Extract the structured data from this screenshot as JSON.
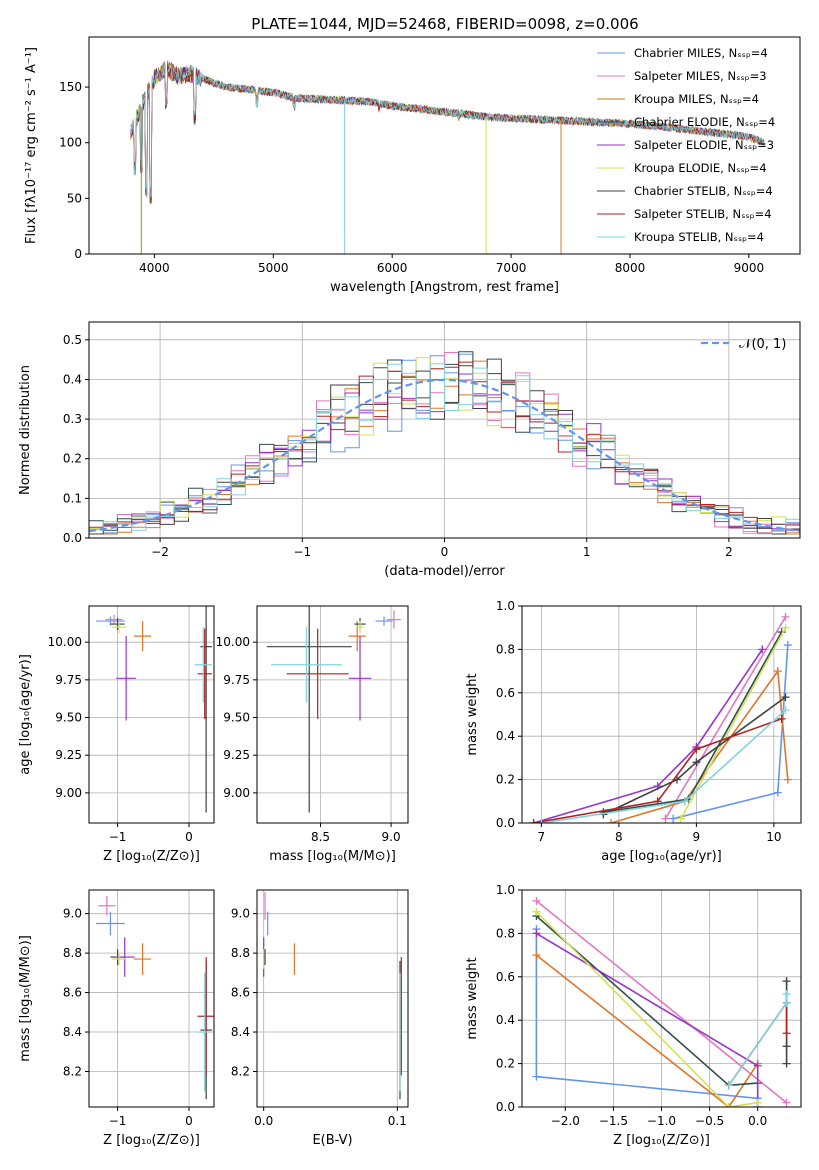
{
  "figure": {
    "title": "PLATE=1044, MJD=52468, FIBERID=0098, z=0.006"
  },
  "chart_data": [
    {
      "id": "spectrum",
      "type": "line",
      "xlabel": "wavelength [Angstrom, rest frame]",
      "ylabel": "Flux [fλ10⁻¹⁷ erg cm⁻² s⁻¹ A⁻¹]",
      "xlim": [
        3450,
        9430
      ],
      "ylim": [
        0,
        195
      ],
      "xticks": [
        4000,
        5000,
        6000,
        7000,
        8000,
        9000
      ],
      "yticks": [
        0,
        50,
        100,
        150
      ],
      "grid": false,
      "legend_position": "top-right",
      "continuum": {
        "x": [
          3800,
          3900,
          4000,
          4100,
          4200,
          4300,
          4400,
          4600,
          4800,
          5000,
          5200,
          5400,
          5600,
          5800,
          6000,
          6200,
          6400,
          6600,
          6800,
          7000,
          7200,
          7400,
          7600,
          7800,
          8000,
          8200,
          8400,
          8600,
          8800,
          9000,
          9130
        ],
        "y": [
          108,
          135,
          158,
          167,
          160,
          162,
          158,
          150,
          148,
          145,
          140,
          139,
          138,
          137,
          133,
          131,
          128,
          126,
          123,
          122,
          121,
          120,
          119,
          118,
          117,
          115,
          113,
          110,
          108,
          105,
          100
        ]
      },
      "absorption_lines": [
        {
          "x": 3835,
          "y": 70
        },
        {
          "x": 3889,
          "y": 72
        },
        {
          "x": 3933,
          "y": 50
        },
        {
          "x": 3968,
          "y": 45
        },
        {
          "x": 4101,
          "y": 130
        },
        {
          "x": 4340,
          "y": 115
        },
        {
          "x": 4861,
          "y": 130
        },
        {
          "x": 5175,
          "y": 128
        },
        {
          "x": 5890,
          "y": 125
        },
        {
          "x": 6563,
          "y": 118
        }
      ],
      "series": [
        {
          "name": "Chabrier MILES, Nₛₛₚ=4",
          "color": "#6495ed"
        },
        {
          "name": "Salpeter MILES, Nₛₛₚ=3",
          "color": "#e377c2"
        },
        {
          "name": "Kroupa MILES, Nₛₛₚ=4",
          "color": "#b8860b"
        },
        {
          "name": "Chabrier ELODIE, Nₛₛₚ=4",
          "color": "#2f4f4f"
        },
        {
          "name": "Salpeter ELODIE, Nₛₛₚ=3",
          "color": "#9932cc"
        },
        {
          "name": "Kroupa ELODIE, Nₛₛₚ=4",
          "color": "#d4e157"
        },
        {
          "name": "Chabrier STELIB, Nₛₛₚ=4",
          "color": "#404040"
        },
        {
          "name": "Salpeter STELIB, Nₛₛₚ=4",
          "color": "#b22222"
        },
        {
          "name": "Kroupa STELIB, Nₛₛₚ=4",
          "color": "#7fd3dc"
        }
      ],
      "dropouts": [
        {
          "x": 3890,
          "y": 0,
          "color": "#b8860b"
        },
        {
          "x": 5600,
          "y": 0,
          "color": "#7fd3dc"
        },
        {
          "x": 6790,
          "y": 0,
          "color": "#d4e157"
        },
        {
          "x": 7420,
          "y": 0,
          "color": "#e0752a"
        }
      ]
    },
    {
      "id": "residuals",
      "type": "line",
      "xlabel": "(data-model)/error",
      "ylabel": "Normed distribution",
      "xlim": [
        -2.5,
        2.5
      ],
      "ylim": [
        0,
        0.545
      ],
      "xticks": [
        -2,
        -1,
        0,
        1,
        2
      ],
      "yticks": [
        0.0,
        0.1,
        0.2,
        0.3,
        0.4,
        0.5
      ],
      "grid": true,
      "legend_position": "top-right",
      "legend": [
        "𝒩(0, 1)"
      ],
      "normal_curve": {
        "mean": 0,
        "sigma": 1,
        "color": "#6495ed",
        "style": "dashed"
      },
      "histogram_bin_width": 0.1,
      "histogram_colors": [
        "#6495ed",
        "#e377c2",
        "#e0752a",
        "#2f4f4f",
        "#9932cc",
        "#d4e157",
        "#404040",
        "#b22222",
        "#7fd3dc"
      ]
    },
    {
      "id": "age-vs-Z",
      "type": "scatter",
      "xlabel": "Z [log₁₀(Z/Z⊙)]",
      "ylabel": "age  [log₁₀(age/yr)]",
      "xlim": [
        -1.4,
        0.35
      ],
      "ylim": [
        8.8,
        10.24
      ],
      "xticks": [
        -1,
        0
      ],
      "yticks": [
        9.0,
        9.25,
        9.5,
        9.75,
        10.0
      ],
      "grid": true,
      "points": [
        {
          "x": -1.1,
          "y": 10.14,
          "xerr": 0.2,
          "yerr": 0.03,
          "color": "#6495ed"
        },
        {
          "x": -1.05,
          "y": 10.15,
          "xerr": 0.12,
          "yerr": 0.03,
          "color": "#e377c2"
        },
        {
          "x": -0.65,
          "y": 10.04,
          "xerr": 0.12,
          "yerr": 0.1,
          "color": "#e0752a"
        },
        {
          "x": -1.0,
          "y": 10.12,
          "xerr": 0.1,
          "yerr": 0.04,
          "color": "#2f4f4f"
        },
        {
          "x": -0.88,
          "y": 9.76,
          "xerr": 0.14,
          "yerr": 0.28,
          "color": "#9932cc"
        },
        {
          "x": -0.98,
          "y": 10.1,
          "xerr": 0.1,
          "yerr": 0.04,
          "color": "#d4e157"
        },
        {
          "x": 0.24,
          "y": 9.97,
          "xerr": 0.08,
          "yerr": 1.1,
          "color": "#404040"
        },
        {
          "x": 0.22,
          "y": 9.79,
          "xerr": 0.1,
          "yerr": 0.3,
          "color": "#b22222"
        },
        {
          "x": 0.2,
          "y": 9.85,
          "xerr": 0.12,
          "yerr": 0.25,
          "color": "#7fd3dc"
        }
      ]
    },
    {
      "id": "age-vs-mass",
      "type": "scatter",
      "xlabel": "mass [log₁₀(M/M⊙)]",
      "ylabel": "",
      "xlim": [
        8.05,
        9.12
      ],
      "ylim": [
        8.8,
        10.24
      ],
      "xticks": [
        8.5,
        9.0
      ],
      "yticks": [
        9.0,
        9.25,
        9.5,
        9.75,
        10.0
      ],
      "grid": true,
      "points": [
        {
          "x": 8.95,
          "y": 10.14,
          "xerr": 0.06,
          "yerr": 0.03,
          "color": "#6495ed"
        },
        {
          "x": 9.02,
          "y": 10.15,
          "xerr": 0.05,
          "yerr": 0.06,
          "color": "#e377c2"
        },
        {
          "x": 8.76,
          "y": 10.04,
          "xerr": 0.06,
          "yerr": 0.1,
          "color": "#e0752a"
        },
        {
          "x": 8.78,
          "y": 10.12,
          "xerr": 0.04,
          "yerr": 0.04,
          "color": "#2f4f4f"
        },
        {
          "x": 8.78,
          "y": 9.76,
          "xerr": 0.08,
          "yerr": 0.28,
          "color": "#9932cc"
        },
        {
          "x": 8.78,
          "y": 10.1,
          "xerr": 0.03,
          "yerr": 0.04,
          "color": "#d4e157"
        },
        {
          "x": 8.42,
          "y": 9.97,
          "xerr": 0.3,
          "yerr": 1.1,
          "color": "#404040"
        },
        {
          "x": 8.48,
          "y": 9.79,
          "xerr": 0.22,
          "yerr": 0.3,
          "color": "#b22222"
        },
        {
          "x": 8.4,
          "y": 9.85,
          "xerr": 0.25,
          "yerr": 0.25,
          "color": "#7fd3dc"
        }
      ]
    },
    {
      "id": "mass-weight-vs-age",
      "type": "line",
      "xlabel": "age  [log₁₀(age/yr)]",
      "ylabel": "mass weight",
      "xlim": [
        6.75,
        10.35
      ],
      "ylim": [
        0,
        1.0
      ],
      "xticks": [
        7,
        8,
        9,
        10
      ],
      "yticks": [
        0.0,
        0.2,
        0.4,
        0.6,
        0.8,
        1.0
      ],
      "grid": true,
      "series": [
        {
          "color": "#6495ed",
          "x": [
            8.7,
            10.05,
            10.18
          ],
          "y": [
            0.02,
            0.14,
            0.82
          ]
        },
        {
          "color": "#e377c2",
          "x": [
            8.6,
            10.15
          ],
          "y": [
            0.02,
            0.95
          ]
        },
        {
          "color": "#e0752a",
          "x": [
            7.9,
            8.85,
            10.05,
            10.18
          ],
          "y": [
            0.0,
            0.1,
            0.7,
            0.2
          ]
        },
        {
          "color": "#2f4f4f",
          "x": [
            7.8,
            8.9,
            10.1
          ],
          "y": [
            0.05,
            0.11,
            0.88
          ]
        },
        {
          "color": "#9932cc",
          "x": [
            6.9,
            8.5,
            9.0,
            9.85
          ],
          "y": [
            0.0,
            0.17,
            0.35,
            0.8
          ]
        },
        {
          "color": "#d4e157",
          "x": [
            8.8,
            10.15
          ],
          "y": [
            0.02,
            0.9
          ]
        },
        {
          "color": "#404040",
          "x": [
            7.8,
            8.75,
            9.0,
            10.15
          ],
          "y": [
            0.04,
            0.2,
            0.28,
            0.58
          ]
        },
        {
          "color": "#b22222",
          "x": [
            6.9,
            8.5,
            9.0,
            10.1
          ],
          "y": [
            0.0,
            0.1,
            0.34,
            0.48
          ]
        },
        {
          "color": "#7fd3dc",
          "x": [
            7.0,
            8.85,
            10.15
          ],
          "y": [
            0.0,
            0.1,
            0.52
          ]
        }
      ]
    },
    {
      "id": "mass-vs-Z",
      "type": "scatter",
      "xlabel": "Z [log₁₀(Z/Z⊙)]",
      "ylabel": "mass [log₁₀(M/M⊙)]",
      "xlim": [
        -1.4,
        0.35
      ],
      "ylim": [
        8.02,
        9.12
      ],
      "xticks": [
        -1,
        0
      ],
      "yticks": [
        8.2,
        8.4,
        8.6,
        8.8,
        9.0
      ],
      "grid": true,
      "points": [
        {
          "x": -1.1,
          "y": 8.95,
          "xerr": 0.2,
          "yerr": 0.06,
          "color": "#6495ed"
        },
        {
          "x": -1.15,
          "y": 9.04,
          "xerr": 0.12,
          "yerr": 0.05,
          "color": "#e377c2"
        },
        {
          "x": -0.65,
          "y": 8.77,
          "xerr": 0.12,
          "yerr": 0.08,
          "color": "#e0752a"
        },
        {
          "x": -1.0,
          "y": 8.78,
          "xerr": 0.1,
          "yerr": 0.04,
          "color": "#2f4f4f"
        },
        {
          "x": -0.9,
          "y": 8.78,
          "xerr": 0.14,
          "yerr": 0.1,
          "color": "#9932cc"
        },
        {
          "x": -0.98,
          "y": 8.77,
          "xerr": 0.1,
          "yerr": 0.03,
          "color": "#d4e157"
        },
        {
          "x": 0.24,
          "y": 8.41,
          "xerr": 0.08,
          "yerr": 0.35,
          "color": "#404040"
        },
        {
          "x": 0.24,
          "y": 8.48,
          "xerr": 0.12,
          "yerr": 0.3,
          "color": "#b22222"
        },
        {
          "x": 0.22,
          "y": 8.4,
          "xerr": 0.1,
          "yerr": 0.3,
          "color": "#7fd3dc"
        }
      ]
    },
    {
      "id": "mass-vs-EBV",
      "type": "scatter",
      "xlabel": "E(B-V)",
      "ylabel": "",
      "xlim": [
        -0.005,
        0.108
      ],
      "ylim": [
        8.02,
        9.12
      ],
      "xticks": [
        0.0,
        0.1
      ],
      "yticks": [
        8.2,
        8.4,
        8.6,
        8.8,
        9.0
      ],
      "grid": true,
      "points": [
        {
          "x": 0.003,
          "y": 8.95,
          "xerr": 0.0,
          "yerr": 0.06,
          "color": "#6495ed"
        },
        {
          "x": 0.001,
          "y": 9.04,
          "xerr": 0.0,
          "yerr": 0.07,
          "color": "#e377c2"
        },
        {
          "x": 0.023,
          "y": 8.77,
          "xerr": 0.0,
          "yerr": 0.08,
          "color": "#e0752a"
        },
        {
          "x": 0.001,
          "y": 8.78,
          "xerr": 0.0,
          "yerr": 0.04,
          "color": "#2f4f4f"
        },
        {
          "x": 0.0,
          "y": 8.78,
          "xerr": 0.0,
          "yerr": 0.1,
          "color": "#9932cc"
        },
        {
          "x": 0.0,
          "y": 8.77,
          "xerr": 0.0,
          "yerr": 0.05,
          "color": "#d4e157"
        },
        {
          "x": 0.102,
          "y": 8.41,
          "xerr": 0.0,
          "yerr": 0.35,
          "color": "#404040"
        },
        {
          "x": 0.103,
          "y": 8.48,
          "xerr": 0.0,
          "yerr": 0.3,
          "color": "#b22222"
        },
        {
          "x": 0.102,
          "y": 8.4,
          "xerr": 0.0,
          "yerr": 0.3,
          "color": "#7fd3dc"
        }
      ]
    },
    {
      "id": "mass-weight-vs-Z",
      "type": "line",
      "xlabel": "Z [log₁₀(Z/Z⊙)]",
      "ylabel": "mass weight",
      "xlim": [
        -2.45,
        0.45
      ],
      "ylim": [
        0,
        1.0
      ],
      "xticks": [
        -2.0,
        -1.5,
        -1.0,
        -0.5,
        0.0
      ],
      "yticks": [
        0.0,
        0.2,
        0.4,
        0.6,
        0.8,
        1.0
      ],
      "grid": true,
      "series": [
        {
          "color": "#6495ed",
          "x": [
            -2.3,
            -2.3,
            0.0,
            0.0
          ],
          "y": [
            0.82,
            0.14,
            0.04,
            0.0
          ]
        },
        {
          "color": "#e377c2",
          "x": [
            -2.3,
            0.3
          ],
          "y": [
            0.95,
            0.02
          ]
        },
        {
          "color": "#e0752a",
          "x": [
            -2.3,
            -0.3,
            0.0
          ],
          "y": [
            0.7,
            0.0,
            0.2
          ]
        },
        {
          "color": "#2f4f4f",
          "x": [
            -2.3,
            -0.3,
            0.0
          ],
          "y": [
            0.88,
            0.1,
            0.11
          ]
        },
        {
          "color": "#9932cc",
          "x": [
            -2.3,
            0.0,
            0.0
          ],
          "y": [
            0.8,
            0.19,
            0.0
          ]
        },
        {
          "color": "#d4e157",
          "x": [
            -2.3,
            -0.3,
            0.0
          ],
          "y": [
            0.9,
            0.0,
            0.02
          ]
        },
        {
          "color": "#404040",
          "x": [
            0.3,
            0.3,
            0.3,
            0.3
          ],
          "y": [
            0.58,
            0.48,
            0.28,
            0.2
          ]
        },
        {
          "color": "#b22222",
          "x": [
            0.3,
            0.3,
            -0.3
          ],
          "y": [
            0.34,
            0.48,
            0.1
          ]
        },
        {
          "color": "#7fd3dc",
          "x": [
            0.3,
            0.3,
            -0.3
          ],
          "y": [
            0.52,
            0.48,
            0.1
          ]
        }
      ]
    }
  ]
}
